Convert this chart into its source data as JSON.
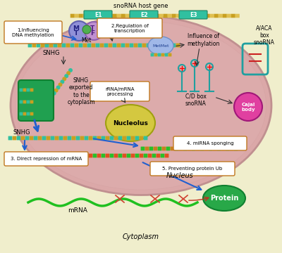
{
  "bg_outer": "#f0eecc",
  "bg_nucleus": "#dba8a8",
  "bg_cytoplasm": "#eee8b0",
  "cell_outline": "#c8a0a0",
  "nucleus_label": "Nucleus",
  "cytoplasm_label": "Cytoplasm",
  "nucleolus_color": "#d4c840",
  "nucleolus_label": "Nucleolus",
  "cajal_color": "#e040a0",
  "cajal_label": "Cajal\nbody",
  "protein_color": "#28a848",
  "protein_label": "Protein",
  "snorna_host_label": "snoRNA host gene",
  "exon_color": "#30c0a0",
  "exon_labels": [
    "E1",
    "E2",
    "E3"
  ],
  "intron_color": "#c8a020",
  "aca_box_label": "A/ACA\nbox\nsnoRNA",
  "cd_box_label": "C/D box\nsnoRNA",
  "influence_label": "Influence of\nmethylation",
  "rrna_label": "rRNA/mRNA\nprocessing",
  "snhg_export_label": "SNHG\nexported\nto the\ncytoplasm",
  "snhg_label1": "SNHG",
  "snhg_label2": "SNHG",
  "label1": "1.Influencing\nDNA methylation",
  "label2": "2.Regulation of\ntranscription",
  "label3": "3. Direct repression of mRNA",
  "label4": "4. miRNA sponging",
  "label5": "5. Preventing protein Ub",
  "met_label": "Met",
  "metmet_label": "MetMet",
  "arrow_color": "#2060d0",
  "dark_arrow": "#303030",
  "box_outline": "#c07820",
  "text_box_bg": "#ffffff"
}
